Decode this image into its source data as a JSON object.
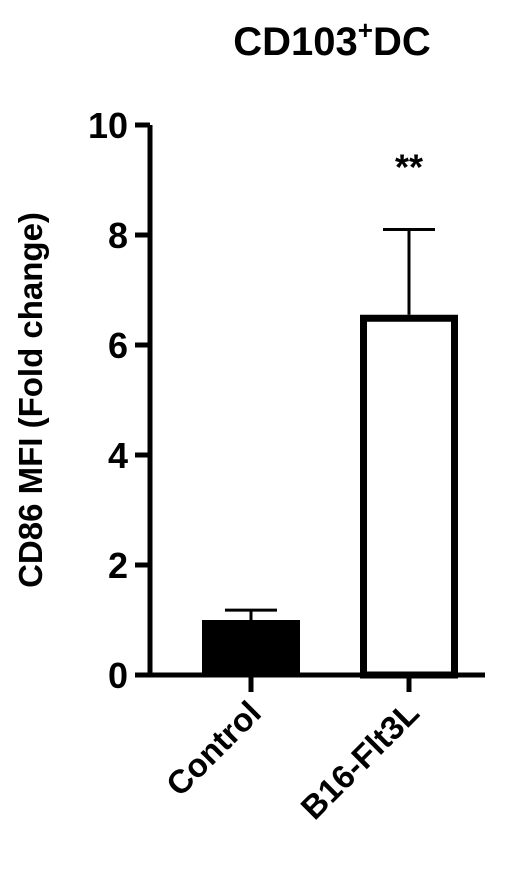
{
  "chart_data": {
    "type": "bar",
    "title": "CD103",
    "title_superscript": "+",
    "title_suffix": "DC",
    "ylabel": "CD86 MFI (Fold change)",
    "xlabel": "",
    "ylim": [
      0,
      10
    ],
    "yticks": [
      "0",
      "2",
      "4",
      "6",
      "8",
      "10"
    ],
    "categories": [
      "Control",
      "B16-Flt3L"
    ],
    "values": [
      1.0,
      6.55
    ],
    "errors": [
      0.18,
      1.55
    ],
    "fills": [
      "#000000",
      "#ffffff"
    ],
    "significance": [
      "",
      "**"
    ],
    "grid": false
  }
}
